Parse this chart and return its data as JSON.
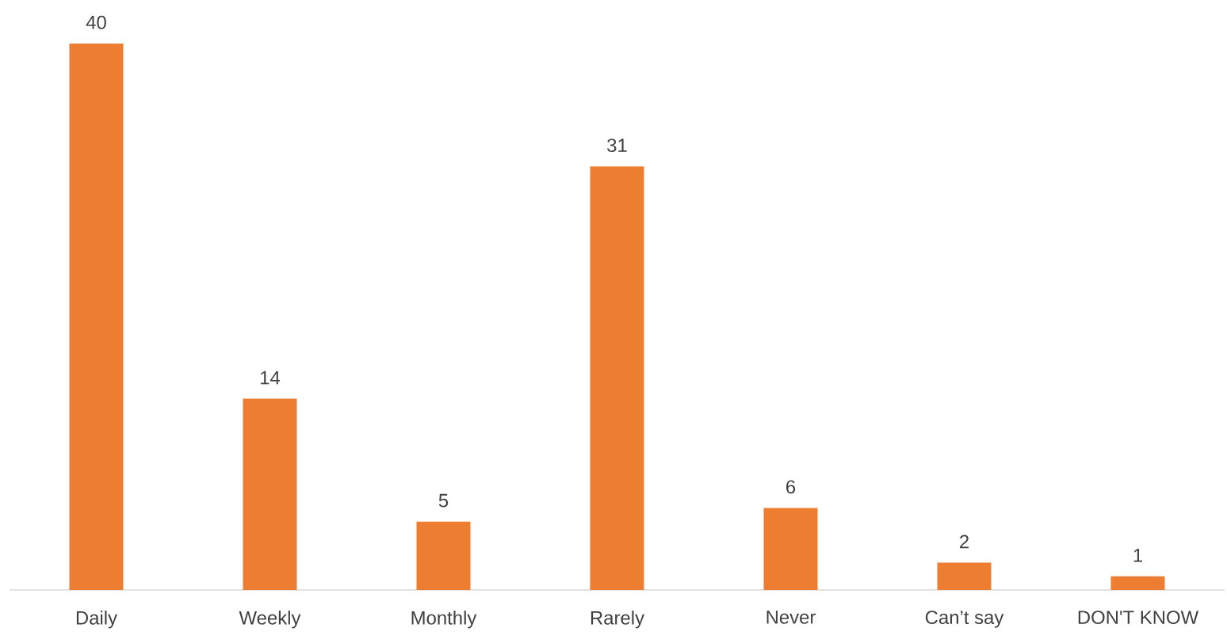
{
  "chart_data": {
    "type": "bar",
    "categories": [
      "Daily",
      "Weekly",
      "Monthly",
      "Rarely",
      "Never",
      "Can’t say",
      "DON'T KNOW"
    ],
    "values": [
      40,
      14,
      5,
      31,
      6,
      2,
      1
    ],
    "color": "#ed7d31",
    "data_labels": true
  }
}
